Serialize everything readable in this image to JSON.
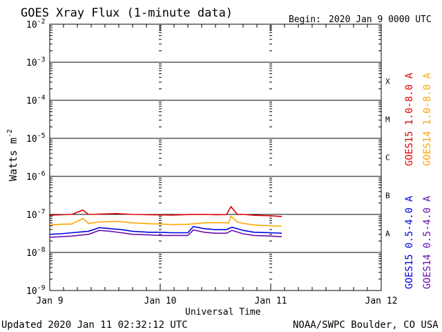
{
  "chart_data": {
    "type": "line",
    "title": "GOES Xray Flux (1-minute data)",
    "begin_label": "Begin:",
    "begin_value": "2020 Jan 9 0000 UTC",
    "xlabel": "Universal Time",
    "ylabel": "Watts m",
    "ylabel_exponent": "-2",
    "y_scale": "log",
    "ylim": [
      1e-09,
      0.01
    ],
    "y_ticks": [
      {
        "value": 0.01,
        "base": "10",
        "exp": "-2"
      },
      {
        "value": 0.001,
        "base": "10",
        "exp": "-3"
      },
      {
        "value": 0.0001,
        "base": "10",
        "exp": "-4"
      },
      {
        "value": 1e-05,
        "base": "10",
        "exp": "-5"
      },
      {
        "value": 1e-06,
        "base": "10",
        "exp": "-6"
      },
      {
        "value": 1e-07,
        "base": "10",
        "exp": "-7"
      },
      {
        "value": 1e-08,
        "base": "10",
        "exp": "-8"
      },
      {
        "value": 1e-09,
        "base": "10",
        "exp": "-9"
      }
    ],
    "x_units": "days since 2020 Jan 9 0000 UTC",
    "xlim": [
      0,
      3
    ],
    "x_ticks": [
      {
        "value": 0,
        "label": "Jan 9"
      },
      {
        "value": 1,
        "label": "Jan 10"
      },
      {
        "value": 2,
        "label": "Jan 11"
      },
      {
        "value": 3,
        "label": "Jan 12"
      }
    ],
    "flare_classes": [
      {
        "label": "X",
        "value": 0.0001
      },
      {
        "label": "M",
        "value": 1e-05
      },
      {
        "label": "C",
        "value": 1e-06
      },
      {
        "label": "B",
        "value": 1e-07
      },
      {
        "label": "A",
        "value": 1e-08
      }
    ],
    "grid": "horizontal decade lines at 1e-3 to 1e-8",
    "legend_placement": "right, vertical",
    "series": [
      {
        "name": "GOES15 1.0-8.0 A",
        "color": "#e00000",
        "x": [
          0.0,
          0.1,
          0.2,
          0.3,
          0.35,
          0.38,
          0.45,
          0.6,
          0.75,
          0.9,
          1.0,
          1.1,
          1.25,
          1.4,
          1.5,
          1.6,
          1.64,
          1.7,
          1.75,
          1.85,
          2.0,
          2.1
        ],
        "y": [
          9.5e-08,
          9.8e-08,
          1e-07,
          1.3e-07,
          1e-07,
          1e-07,
          1.02e-07,
          1.05e-07,
          1e-07,
          9.8e-08,
          9.7e-08,
          9.6e-08,
          9.9e-08,
          1e-07,
          9.8e-08,
          9.9e-08,
          1.6e-07,
          9.9e-08,
          1e-07,
          9.5e-08,
          9.2e-08,
          8.8e-08
        ]
      },
      {
        "name": "GOES14 1.0-8.0 A",
        "color": "#ffa500",
        "x": [
          0.0,
          0.1,
          0.2,
          0.3,
          0.35,
          0.45,
          0.6,
          0.75,
          0.9,
          1.0,
          1.1,
          1.25,
          1.4,
          1.5,
          1.62,
          1.64,
          1.7,
          1.75,
          1.85,
          2.0,
          2.1
        ],
        "y": [
          5.3e-08,
          5.5e-08,
          5.6e-08,
          7.8e-08,
          5.8e-08,
          6.3e-08,
          6.6e-08,
          6e-08,
          5.7e-08,
          5.6e-08,
          5.4e-08,
          5.5e-08,
          6e-08,
          6.1e-08,
          6e-08,
          9e-08,
          6.3e-08,
          5.8e-08,
          5.3e-08,
          5e-08,
          4.9e-08
        ]
      },
      {
        "name": "GOES15 0.5-4.0 A",
        "color": "#0000e0",
        "x": [
          0.0,
          0.1,
          0.2,
          0.3,
          0.35,
          0.45,
          0.55,
          0.65,
          0.75,
          0.9,
          1.0,
          1.1,
          1.25,
          1.3,
          1.4,
          1.5,
          1.6,
          1.65,
          1.75,
          1.85,
          2.0,
          2.1
        ],
        "y": [
          3e-08,
          3.1e-08,
          3.3e-08,
          3.5e-08,
          3.6e-08,
          4.5e-08,
          4.2e-08,
          4e-08,
          3.6e-08,
          3.4e-08,
          3.4e-08,
          3.3e-08,
          3.3e-08,
          4.8e-08,
          4.2e-08,
          4e-08,
          4e-08,
          4.6e-08,
          3.8e-08,
          3.4e-08,
          3.3e-08,
          3.2e-08
        ]
      },
      {
        "name": "GOES14 0.5-4.0 A",
        "color": "#6a0dad",
        "x": [
          0.0,
          0.1,
          0.2,
          0.3,
          0.35,
          0.45,
          0.55,
          0.65,
          0.75,
          0.9,
          1.0,
          1.1,
          1.25,
          1.3,
          1.4,
          1.5,
          1.6,
          1.65,
          1.75,
          1.85,
          2.0,
          2.1
        ],
        "y": [
          2.5e-08,
          2.6e-08,
          2.7e-08,
          2.9e-08,
          3e-08,
          3.8e-08,
          3.6e-08,
          3.3e-08,
          3e-08,
          2.9e-08,
          2.8e-08,
          2.8e-08,
          2.8e-08,
          3.9e-08,
          3.4e-08,
          3.2e-08,
          3.2e-08,
          3.8e-08,
          3.1e-08,
          2.8e-08,
          2.7e-08,
          2.6e-08
        ]
      }
    ]
  },
  "footer": {
    "updated": "Updated 2020 Jan 11 02:32:12 UTC",
    "credit": "NOAA/SWPC Boulder, CO USA"
  }
}
